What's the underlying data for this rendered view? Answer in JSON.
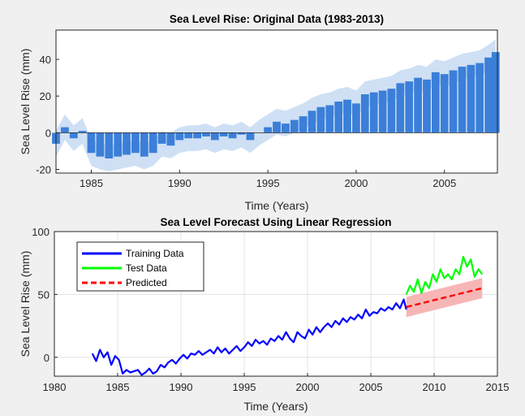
{
  "chart_data": [
    {
      "type": "bar",
      "title": "Sea Level Rise: Original Data (1983-2013)",
      "xlabel": "Time (Years)",
      "ylabel": "Sea Level Rise (mm)",
      "xlim": [
        1983,
        2008
      ],
      "ylim": [
        -22,
        56
      ],
      "xticks": [
        1985,
        1990,
        1995,
        2000,
        2005
      ],
      "yticks": [
        -20,
        0,
        20,
        40
      ],
      "grid": false,
      "bar_color": "#3b7fd9",
      "band_color": "#cfe0f5",
      "band_halfwidth": 7,
      "series": [
        {
          "values_note_free": true,
          "x": [
            1983.0,
            1983.5,
            1984.0,
            1984.5,
            1985.0,
            1985.5,
            1986.0,
            1986.5,
            1987.0,
            1987.5,
            1988.0,
            1988.5,
            1989.0,
            1989.5,
            1990.0,
            1990.5,
            1991.0,
            1991.5,
            1992.0,
            1992.5,
            1993.0,
            1993.5,
            1994.0,
            1994.5,
            1995.0,
            1995.5,
            1996.0,
            1996.5,
            1997.0,
            1997.5,
            1998.0,
            1998.5,
            1999.0,
            1999.5,
            2000.0,
            2000.5,
            2001.0,
            2001.5,
            2002.0,
            2002.5,
            2003.0,
            2003.5,
            2004.0,
            2004.5,
            2005.0,
            2005.5,
            2006.0,
            2006.5,
            2007.0,
            2007.5,
            2007.9
          ],
          "values": [
            -6,
            3,
            -3,
            1,
            -11,
            -13,
            -14,
            -13,
            -12,
            -11,
            -13,
            -11,
            -6,
            -7,
            -4,
            -3,
            -3,
            -2,
            -4,
            -2,
            -3,
            -1,
            -4,
            0,
            3,
            6,
            5,
            7,
            9,
            12,
            14,
            15,
            17,
            18,
            16,
            21,
            22,
            23,
            24,
            27,
            28,
            30,
            29,
            33,
            32,
            34,
            36,
            37,
            38,
            41,
            44
          ]
        }
      ]
    },
    {
      "type": "line",
      "title": "Sea Level Forecast Using Linear Regression",
      "xlabel": "Time (Years)",
      "ylabel": "Sea Level Rise (mm)",
      "xlim": [
        1980,
        2015
      ],
      "ylim": [
        -15,
        100
      ],
      "xticks": [
        1980,
        1985,
        1990,
        1995,
        2000,
        2005,
        2010,
        2015
      ],
      "yticks": [
        0,
        50,
        100
      ],
      "grid": true,
      "legend": {
        "placement": "top-left"
      },
      "series": [
        {
          "name": "Training Data",
          "color": "#0000ff",
          "style": "solid",
          "x": [
            1983.0,
            1983.3,
            1983.6,
            1983.9,
            1984.2,
            1984.5,
            1984.8,
            1985.1,
            1985.4,
            1985.7,
            1986.0,
            1986.3,
            1986.6,
            1986.9,
            1987.2,
            1987.5,
            1987.8,
            1988.1,
            1988.4,
            1988.7,
            1989.0,
            1989.3,
            1989.6,
            1989.9,
            1990.2,
            1990.5,
            1990.8,
            1991.1,
            1991.4,
            1991.7,
            1992.0,
            1992.3,
            1992.6,
            1992.9,
            1993.2,
            1993.5,
            1993.8,
            1994.1,
            1994.4,
            1994.7,
            1995.0,
            1995.3,
            1995.6,
            1995.9,
            1996.2,
            1996.5,
            1996.8,
            1997.1,
            1997.4,
            1997.7,
            1998.0,
            1998.3,
            1998.6,
            1998.9,
            1999.2,
            1999.5,
            1999.8,
            2000.1,
            2000.4,
            2000.7,
            2001.0,
            2001.3,
            2001.6,
            2001.9,
            2002.2,
            2002.5,
            2002.8,
            2003.1,
            2003.4,
            2003.7,
            2004.0,
            2004.3,
            2004.6,
            2004.9,
            2005.2,
            2005.5,
            2005.8,
            2006.1,
            2006.4,
            2006.7,
            2007.0,
            2007.3,
            2007.6,
            2007.8
          ],
          "values": [
            3,
            -3,
            6,
            0,
            4,
            -6,
            1,
            -2,
            -13,
            -10,
            -12,
            -11,
            -10,
            -14,
            -12,
            -9,
            -13,
            -11,
            -6,
            -8,
            -4,
            -2,
            -5,
            -1,
            2,
            -1,
            3,
            2,
            5,
            2,
            4,
            6,
            3,
            8,
            4,
            7,
            3,
            6,
            9,
            5,
            8,
            12,
            9,
            14,
            11,
            13,
            10,
            15,
            13,
            17,
            14,
            20,
            15,
            12,
            20,
            17,
            15,
            22,
            18,
            24,
            20,
            24,
            27,
            24,
            29,
            26,
            31,
            28,
            32,
            30,
            34,
            31,
            38,
            33,
            36,
            35,
            39,
            37,
            40,
            38,
            43,
            39,
            46,
            38
          ]
        },
        {
          "name": "Test Data",
          "color": "#00ff00",
          "style": "solid",
          "x": [
            2007.8,
            2008.1,
            2008.4,
            2008.7,
            2009.0,
            2009.3,
            2009.6,
            2009.9,
            2010.2,
            2010.5,
            2010.8,
            2011.1,
            2011.4,
            2011.7,
            2012.0,
            2012.3,
            2012.6,
            2012.9,
            2013.2,
            2013.5,
            2013.8
          ],
          "values": [
            50,
            57,
            52,
            62,
            51,
            60,
            55,
            66,
            60,
            70,
            63,
            66,
            62,
            70,
            66,
            80,
            72,
            78,
            64,
            70,
            66
          ]
        },
        {
          "name": "Predicted",
          "color": "#ff0000",
          "style": "dashed",
          "x": [
            2007.8,
            2013.8
          ],
          "values": [
            40,
            55
          ]
        }
      ],
      "confidence_band": {
        "color": "#f7b6b6",
        "x": [
          2007.8,
          2013.8
        ],
        "lower": [
          32,
          47
        ],
        "upper": [
          48,
          63
        ]
      }
    }
  ]
}
